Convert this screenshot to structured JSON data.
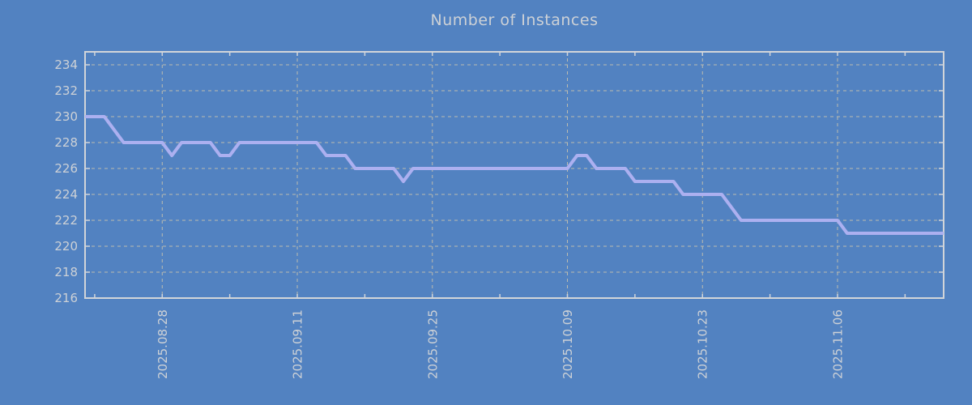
{
  "colors": {
    "background": "#5282c1",
    "line": "#acb0f0",
    "grid": "#bcbcb0",
    "frame": "#d2d5d9",
    "text": "#cdd1d6"
  },
  "chart_data": {
    "type": "line",
    "title": "Number of Instances",
    "xlabel": "",
    "ylabel": "",
    "grid": true,
    "legend": null,
    "ylim": [
      216,
      235
    ],
    "xlim_dates": [
      "2025-08-20",
      "2025-11-17"
    ],
    "y_ticks": [
      216,
      218,
      220,
      222,
      224,
      226,
      228,
      230,
      232,
      234
    ],
    "x_ticks": [
      {
        "label": "2025.08.28",
        "date": "2025-08-28"
      },
      {
        "label": "2025.09.11",
        "date": "2025-09-11"
      },
      {
        "label": "2025.09.25",
        "date": "2025-09-25"
      },
      {
        "label": "2025.10.09",
        "date": "2025-10-09"
      },
      {
        "label": "2025.10.23",
        "date": "2025-10-23"
      },
      {
        "label": "2025.11.06",
        "date": "2025-11-06"
      }
    ],
    "points": [
      [
        "2025-08-20",
        230
      ],
      [
        "2025-08-21",
        230
      ],
      [
        "2025-08-22",
        230
      ],
      [
        "2025-08-23",
        229
      ],
      [
        "2025-08-24",
        228
      ],
      [
        "2025-08-25",
        228
      ],
      [
        "2025-08-26",
        228
      ],
      [
        "2025-08-27",
        228
      ],
      [
        "2025-08-28",
        228
      ],
      [
        "2025-08-29",
        227
      ],
      [
        "2025-08-30",
        228
      ],
      [
        "2025-08-31",
        228
      ],
      [
        "2025-09-01",
        228
      ],
      [
        "2025-09-02",
        228
      ],
      [
        "2025-09-03",
        227
      ],
      [
        "2025-09-04",
        227
      ],
      [
        "2025-09-05",
        228
      ],
      [
        "2025-09-06",
        228
      ],
      [
        "2025-09-07",
        228
      ],
      [
        "2025-09-08",
        228
      ],
      [
        "2025-09-09",
        228
      ],
      [
        "2025-09-10",
        228
      ],
      [
        "2025-09-11",
        228
      ],
      [
        "2025-09-12",
        228
      ],
      [
        "2025-09-13",
        228
      ],
      [
        "2025-09-14",
        227
      ],
      [
        "2025-09-15",
        227
      ],
      [
        "2025-09-16",
        227
      ],
      [
        "2025-09-17",
        226
      ],
      [
        "2025-09-18",
        226
      ],
      [
        "2025-09-19",
        226
      ],
      [
        "2025-09-20",
        226
      ],
      [
        "2025-09-21",
        226
      ],
      [
        "2025-09-22",
        225
      ],
      [
        "2025-09-23",
        226
      ],
      [
        "2025-09-24",
        226
      ],
      [
        "2025-09-25",
        226
      ],
      [
        "2025-09-26",
        226
      ],
      [
        "2025-09-27",
        226
      ],
      [
        "2025-09-28",
        226
      ],
      [
        "2025-09-29",
        226
      ],
      [
        "2025-09-30",
        226
      ],
      [
        "2025-10-01",
        226
      ],
      [
        "2025-10-02",
        226
      ],
      [
        "2025-10-03",
        226
      ],
      [
        "2025-10-04",
        226
      ],
      [
        "2025-10-05",
        226
      ],
      [
        "2025-10-06",
        226
      ],
      [
        "2025-10-07",
        226
      ],
      [
        "2025-10-08",
        226
      ],
      [
        "2025-10-09",
        226
      ],
      [
        "2025-10-10",
        227
      ],
      [
        "2025-10-11",
        227
      ],
      [
        "2025-10-12",
        226
      ],
      [
        "2025-10-13",
        226
      ],
      [
        "2025-10-14",
        226
      ],
      [
        "2025-10-15",
        226
      ],
      [
        "2025-10-16",
        225
      ],
      [
        "2025-10-17",
        225
      ],
      [
        "2025-10-18",
        225
      ],
      [
        "2025-10-19",
        225
      ],
      [
        "2025-10-20",
        225
      ],
      [
        "2025-10-21",
        224
      ],
      [
        "2025-10-22",
        224
      ],
      [
        "2025-10-23",
        224
      ],
      [
        "2025-10-24",
        224
      ],
      [
        "2025-10-25",
        224
      ],
      [
        "2025-10-26",
        223
      ],
      [
        "2025-10-27",
        222
      ],
      [
        "2025-10-28",
        222
      ],
      [
        "2025-10-29",
        222
      ],
      [
        "2025-10-30",
        222
      ],
      [
        "2025-10-31",
        222
      ],
      [
        "2025-11-01",
        222
      ],
      [
        "2025-11-02",
        222
      ],
      [
        "2025-11-03",
        222
      ],
      [
        "2025-11-04",
        222
      ],
      [
        "2025-11-05",
        222
      ],
      [
        "2025-11-06",
        222
      ],
      [
        "2025-11-07",
        221
      ],
      [
        "2025-11-08",
        221
      ],
      [
        "2025-11-09",
        221
      ],
      [
        "2025-11-10",
        221
      ],
      [
        "2025-11-11",
        221
      ],
      [
        "2025-11-12",
        221
      ],
      [
        "2025-11-13",
        221
      ],
      [
        "2025-11-14",
        221
      ],
      [
        "2025-11-15",
        221
      ],
      [
        "2025-11-16",
        221
      ],
      [
        "2025-11-17",
        221
      ]
    ]
  }
}
